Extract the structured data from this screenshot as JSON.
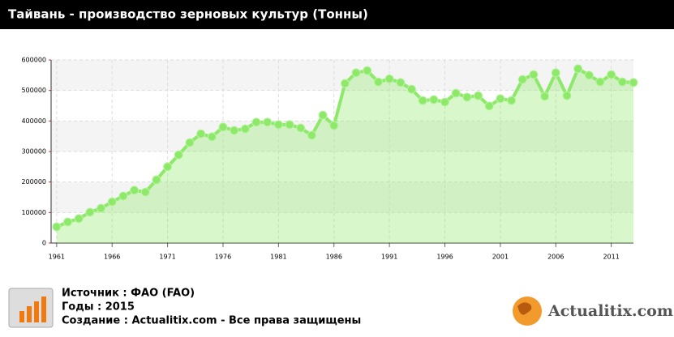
{
  "chart_data": {
    "type": "line",
    "title": "Тайвань - производство зерновых культур (Тонны)",
    "x": [
      1961,
      1962,
      1963,
      1964,
      1965,
      1966,
      1967,
      1968,
      1969,
      1970,
      1971,
      1972,
      1973,
      1974,
      1975,
      1976,
      1977,
      1978,
      1979,
      1980,
      1981,
      1982,
      1983,
      1984,
      1985,
      1986,
      1987,
      1988,
      1989,
      1990,
      1991,
      1992,
      1993,
      1994,
      1995,
      1996,
      1997,
      1998,
      1999,
      2000,
      2001,
      2002,
      2003,
      2004,
      2005,
      2006,
      2007,
      2008,
      2009,
      2010,
      2011,
      2012,
      2013
    ],
    "values": [
      53000,
      69000,
      80000,
      101000,
      114000,
      135000,
      154000,
      173000,
      167000,
      207000,
      250000,
      289000,
      329000,
      358000,
      348000,
      380000,
      369000,
      374000,
      396000,
      396000,
      388000,
      388000,
      377000,
      353000,
      419000,
      385000,
      523000,
      558000,
      565000,
      528000,
      538000,
      526000,
      504000,
      467000,
      470000,
      462000,
      491000,
      478000,
      483000,
      449000,
      473000,
      467000,
      536000,
      552000,
      481000,
      558000,
      483000,
      571000,
      550000,
      528000,
      552000,
      528000,
      526000
    ],
    "color": "#8ee86a",
    "xlim": [
      1960.5,
      2013
    ],
    "xticks": [
      1961,
      1966,
      1971,
      1976,
      1981,
      1986,
      1991,
      1996,
      2001,
      2006,
      2011
    ],
    "ylim": [
      0,
      600000
    ],
    "yticks": [
      0,
      100000,
      200000,
      300000,
      400000,
      500000,
      600000
    ],
    "grid": true
  },
  "footer": {
    "lines": [
      "Источник : ФАО (FAO)",
      "Годы : 2015",
      "Создание : Actualitix.com -  Все права защищены"
    ],
    "logo": "Actualitix.com"
  }
}
